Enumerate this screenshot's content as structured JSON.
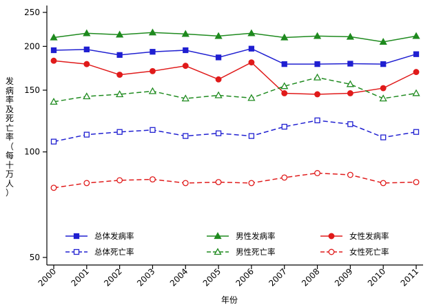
{
  "chart_data": {
    "type": "line",
    "xlabel": "年份",
    "ylabel": "发病率及死亡率（每十万人）",
    "yscale": "log",
    "ylim": [
      48,
      255
    ],
    "yticks": [
      50,
      100,
      150,
      200,
      250
    ],
    "x": [
      "2000",
      "2001",
      "2002",
      "2003",
      "2004",
      "2005",
      "2006",
      "2007",
      "2008",
      "2009",
      "2010",
      "2011"
    ],
    "legend_placement": "bottom-inside",
    "series": [
      {
        "name": "总体发病率",
        "color": "#1f1fd1",
        "marker": "square-filled",
        "dash": "solid",
        "values": [
          195,
          196,
          189,
          193,
          195,
          186,
          197,
          178,
          178,
          178.5,
          178,
          190
        ]
      },
      {
        "name": "男性发病率",
        "color": "#1e8a1e",
        "marker": "triangle-filled",
        "dash": "solid",
        "values": [
          212,
          218,
          216,
          219,
          217,
          214,
          218,
          212,
          214,
          213,
          206,
          214
        ]
      },
      {
        "name": "女性发病率",
        "color": "#e01a1a",
        "marker": "circle-filled",
        "dash": "solid",
        "values": [
          182,
          178,
          166,
          170,
          176,
          161,
          180,
          147,
          146,
          147,
          152,
          169
        ]
      },
      {
        "name": "总体死亡率",
        "color": "#1f1fd1",
        "marker": "square-open",
        "dash": "dashed",
        "values": [
          107,
          112,
          114,
          115.5,
          111,
          113,
          111,
          118,
          123,
          120,
          110,
          114
        ]
      },
      {
        "name": "男性死亡率",
        "color": "#1e8a1e",
        "marker": "triangle-open",
        "dash": "dashed",
        "values": [
          139,
          144,
          146,
          149,
          142,
          145,
          142.5,
          154,
          163,
          156,
          142,
          147
        ]
      },
      {
        "name": "女性死亡率",
        "color": "#e01a1a",
        "marker": "circle-open",
        "dash": "dashed",
        "values": [
          79,
          81.5,
          83,
          83.5,
          81.5,
          82,
          81.5,
          84.5,
          87,
          86,
          81.5,
          82
        ]
      }
    ]
  }
}
